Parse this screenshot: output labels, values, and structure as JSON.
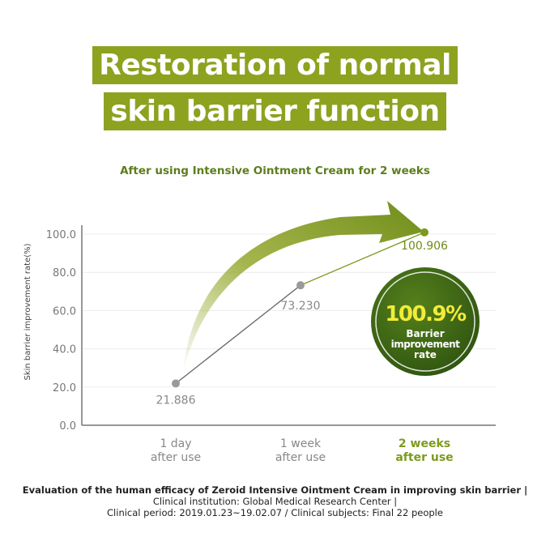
{
  "title_lines": [
    "Restoration of normal",
    "skin barrier function"
  ],
  "subtitle": "After using Intensive Ointment Cream for 2 weeks",
  "chart_data": {
    "type": "line",
    "ylabel": "Skin barrier improvement rate(%)",
    "ylim": [
      0,
      100
    ],
    "yticks": [
      "0.0",
      "20.0",
      "40.0",
      "60.0",
      "80.0",
      "100.0"
    ],
    "grid": true,
    "categories": [
      [
        "1 day",
        "after use"
      ],
      [
        "1 week",
        "after use"
      ],
      [
        "2 weeks",
        "after use"
      ]
    ],
    "values": [
      21.886,
      73.23,
      100.906
    ],
    "data_labels": [
      "21.886",
      "73.230",
      "100.906"
    ],
    "highlight_category_index": 2
  },
  "badge": {
    "value": "100.9%",
    "lines": [
      "Barrier",
      "improvement",
      "rate"
    ]
  },
  "colors": {
    "accent": "#8da21f",
    "badge": "#3f6a14",
    "badge_text": "#f2ec38",
    "point": "#9a9a9a",
    "highlight": "#7c9a1e"
  },
  "footer": {
    "line1": "Evaluation of the human efficacy of Zeroid Intensive Ointment Cream in improving skin barrier |",
    "line2": "Clinical institution: Global Medical Research Center |",
    "line3": "Clinical period: 2019.01.23~19.02.07 / Clinical subjects: Final 22 people"
  }
}
